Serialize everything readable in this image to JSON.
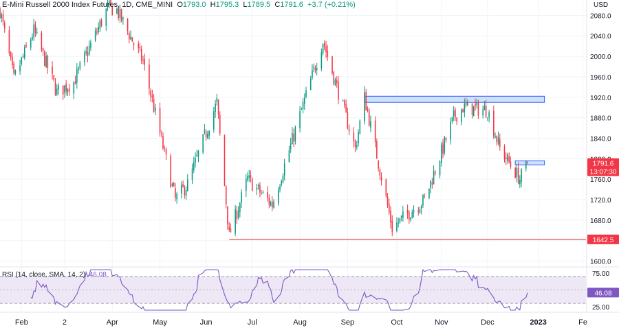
{
  "header": {
    "title": "E-Mini Russell 2000 Index Futures, 1D, CME_MINI",
    "open_label": "O",
    "open": "1793.0",
    "high_label": "H",
    "high": "1795.3",
    "low_label": "L",
    "low": "1789.5",
    "close_label": "C",
    "close": "1791.6",
    "change": "+3.7 (+0.21%)"
  },
  "rsi_header": {
    "label": "RSI (14, close, SMA, 14, 2)",
    "value": "46.08"
  },
  "price_axis": {
    "currency": "USD",
    "ticks": [
      "2080.0",
      "2040.0",
      "2000.0",
      "1960.0",
      "1920.0",
      "1880.0",
      "1840.0",
      "1800.0",
      "1760.0",
      "1720.0",
      "1680.0",
      "1640.0",
      "1600.0"
    ]
  },
  "rsi_axis": {
    "ticks": [
      "75.00",
      "50.00",
      "25.00"
    ]
  },
  "x_axis": {
    "labels": [
      "Feb",
      "2",
      "Apr",
      "May",
      "Jun",
      "Jul",
      "Aug",
      "Sep",
      "Oct",
      "Nov",
      "Dec",
      "2023",
      "Fe"
    ]
  },
  "badges": {
    "last_price": "1791.6",
    "countdown": "13:07:30",
    "support_level": "1642.5",
    "rsi_value": "46.08"
  },
  "colors": {
    "up": "#089981",
    "down": "#f23645",
    "zone_fill": "#cfe0fb",
    "zone_stroke": "#2962ff",
    "support": "#e53935",
    "rsi_line": "#7e57c2",
    "rsi_band": "#ede7f6",
    "grid": "#f0f3fa"
  },
  "chart_data": [
    {
      "type": "candlestick",
      "title": "E-Mini Russell 2000 Index Futures, 1D, CME_MINI",
      "ylim": [
        1590,
        2110
      ],
      "x_range": [
        "2022-01-18",
        "2023-02-03"
      ],
      "keypoints": [
        {
          "date": "2022-01-18",
          "close": 2090
        },
        {
          "date": "2022-01-27",
          "close": 1955
        },
        {
          "date": "2022-02-09",
          "close": 2050
        },
        {
          "date": "2022-02-24",
          "close": 1930
        },
        {
          "date": "2022-03-07",
          "close": 1950
        },
        {
          "date": "2022-03-29",
          "close": 2095
        },
        {
          "date": "2022-04-04",
          "close": 2090
        },
        {
          "date": "2022-04-21",
          "close": 1990
        },
        {
          "date": "2022-05-12",
          "close": 1720
        },
        {
          "date": "2022-05-20",
          "close": 1750
        },
        {
          "date": "2022-06-08",
          "close": 1910
        },
        {
          "date": "2022-06-16",
          "close": 1650
        },
        {
          "date": "2022-06-28",
          "close": 1760
        },
        {
          "date": "2022-07-14",
          "close": 1710
        },
        {
          "date": "2022-08-16",
          "close": 2030
        },
        {
          "date": "2022-09-06",
          "close": 1820
        },
        {
          "date": "2022-09-12",
          "close": 1920
        },
        {
          "date": "2022-09-30",
          "close": 1665
        },
        {
          "date": "2022-10-13",
          "close": 1700
        },
        {
          "date": "2022-10-21",
          "close": 1720
        },
        {
          "date": "2022-11-09",
          "close": 1880
        },
        {
          "date": "2022-11-15",
          "close": 1900
        },
        {
          "date": "2022-12-01",
          "close": 1895
        },
        {
          "date": "2022-12-09",
          "close": 1820
        },
        {
          "date": "2022-12-22",
          "close": 1760
        },
        {
          "date": "2022-12-27",
          "close": 1791.6
        }
      ],
      "zones": [
        {
          "from": "2022-09-12",
          "to": "2023-01-07",
          "low": 1910,
          "high": 1922
        },
        {
          "from": "2022-12-19",
          "to": "2023-01-07",
          "low": 1788,
          "high": 1796
        }
      ],
      "support_line": {
        "from": "2022-06-16",
        "value": 1642.5
      }
    },
    {
      "type": "line",
      "title": "RSI (14, close, SMA, 14, 2)",
      "ylim": [
        20,
        80
      ],
      "bands": [
        30,
        70
      ],
      "last_value": 46.08
    }
  ]
}
